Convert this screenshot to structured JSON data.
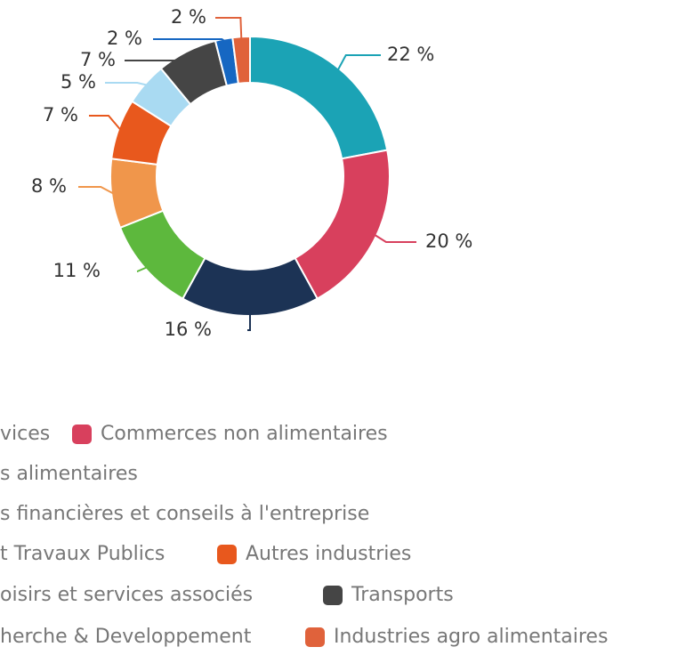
{
  "chart_data": {
    "type": "donut",
    "series": [
      {
        "name": "vices",
        "color": "#1ba3b5",
        "value": 22,
        "value_label": "22 %"
      },
      {
        "name": "Commerces non alimentaires",
        "color": "#d8405d",
        "value": 20,
        "value_label": "20 %"
      },
      {
        "name": "s alimentaires",
        "color": "#1c3355",
        "value": 16,
        "value_label": "16 %"
      },
      {
        "name": "s financières et conseils à l'entreprise",
        "color": "#5db83d",
        "value": 11,
        "value_label": "11 %"
      },
      {
        "name": "t Travaux Publics",
        "color": "#f0964b",
        "value": 8,
        "value_label": "8 %"
      },
      {
        "name": "Autres industries",
        "color": "#e8581d",
        "value": 7,
        "value_label": "7 %"
      },
      {
        "name": "oisirs et services associés",
        "color": "#a9daf2",
        "value": 5,
        "value_label": "5 %"
      },
      {
        "name": "Transports",
        "color": "#454545",
        "value": 7,
        "value_label": "7 %"
      },
      {
        "name": "herche & Developpement",
        "color": "#1667c2",
        "value": 2,
        "value_label": "2 %"
      },
      {
        "name": "Industries agro alimentaires",
        "color": "#e0623b",
        "value": 2,
        "value_label": "2 %"
      }
    ]
  }
}
